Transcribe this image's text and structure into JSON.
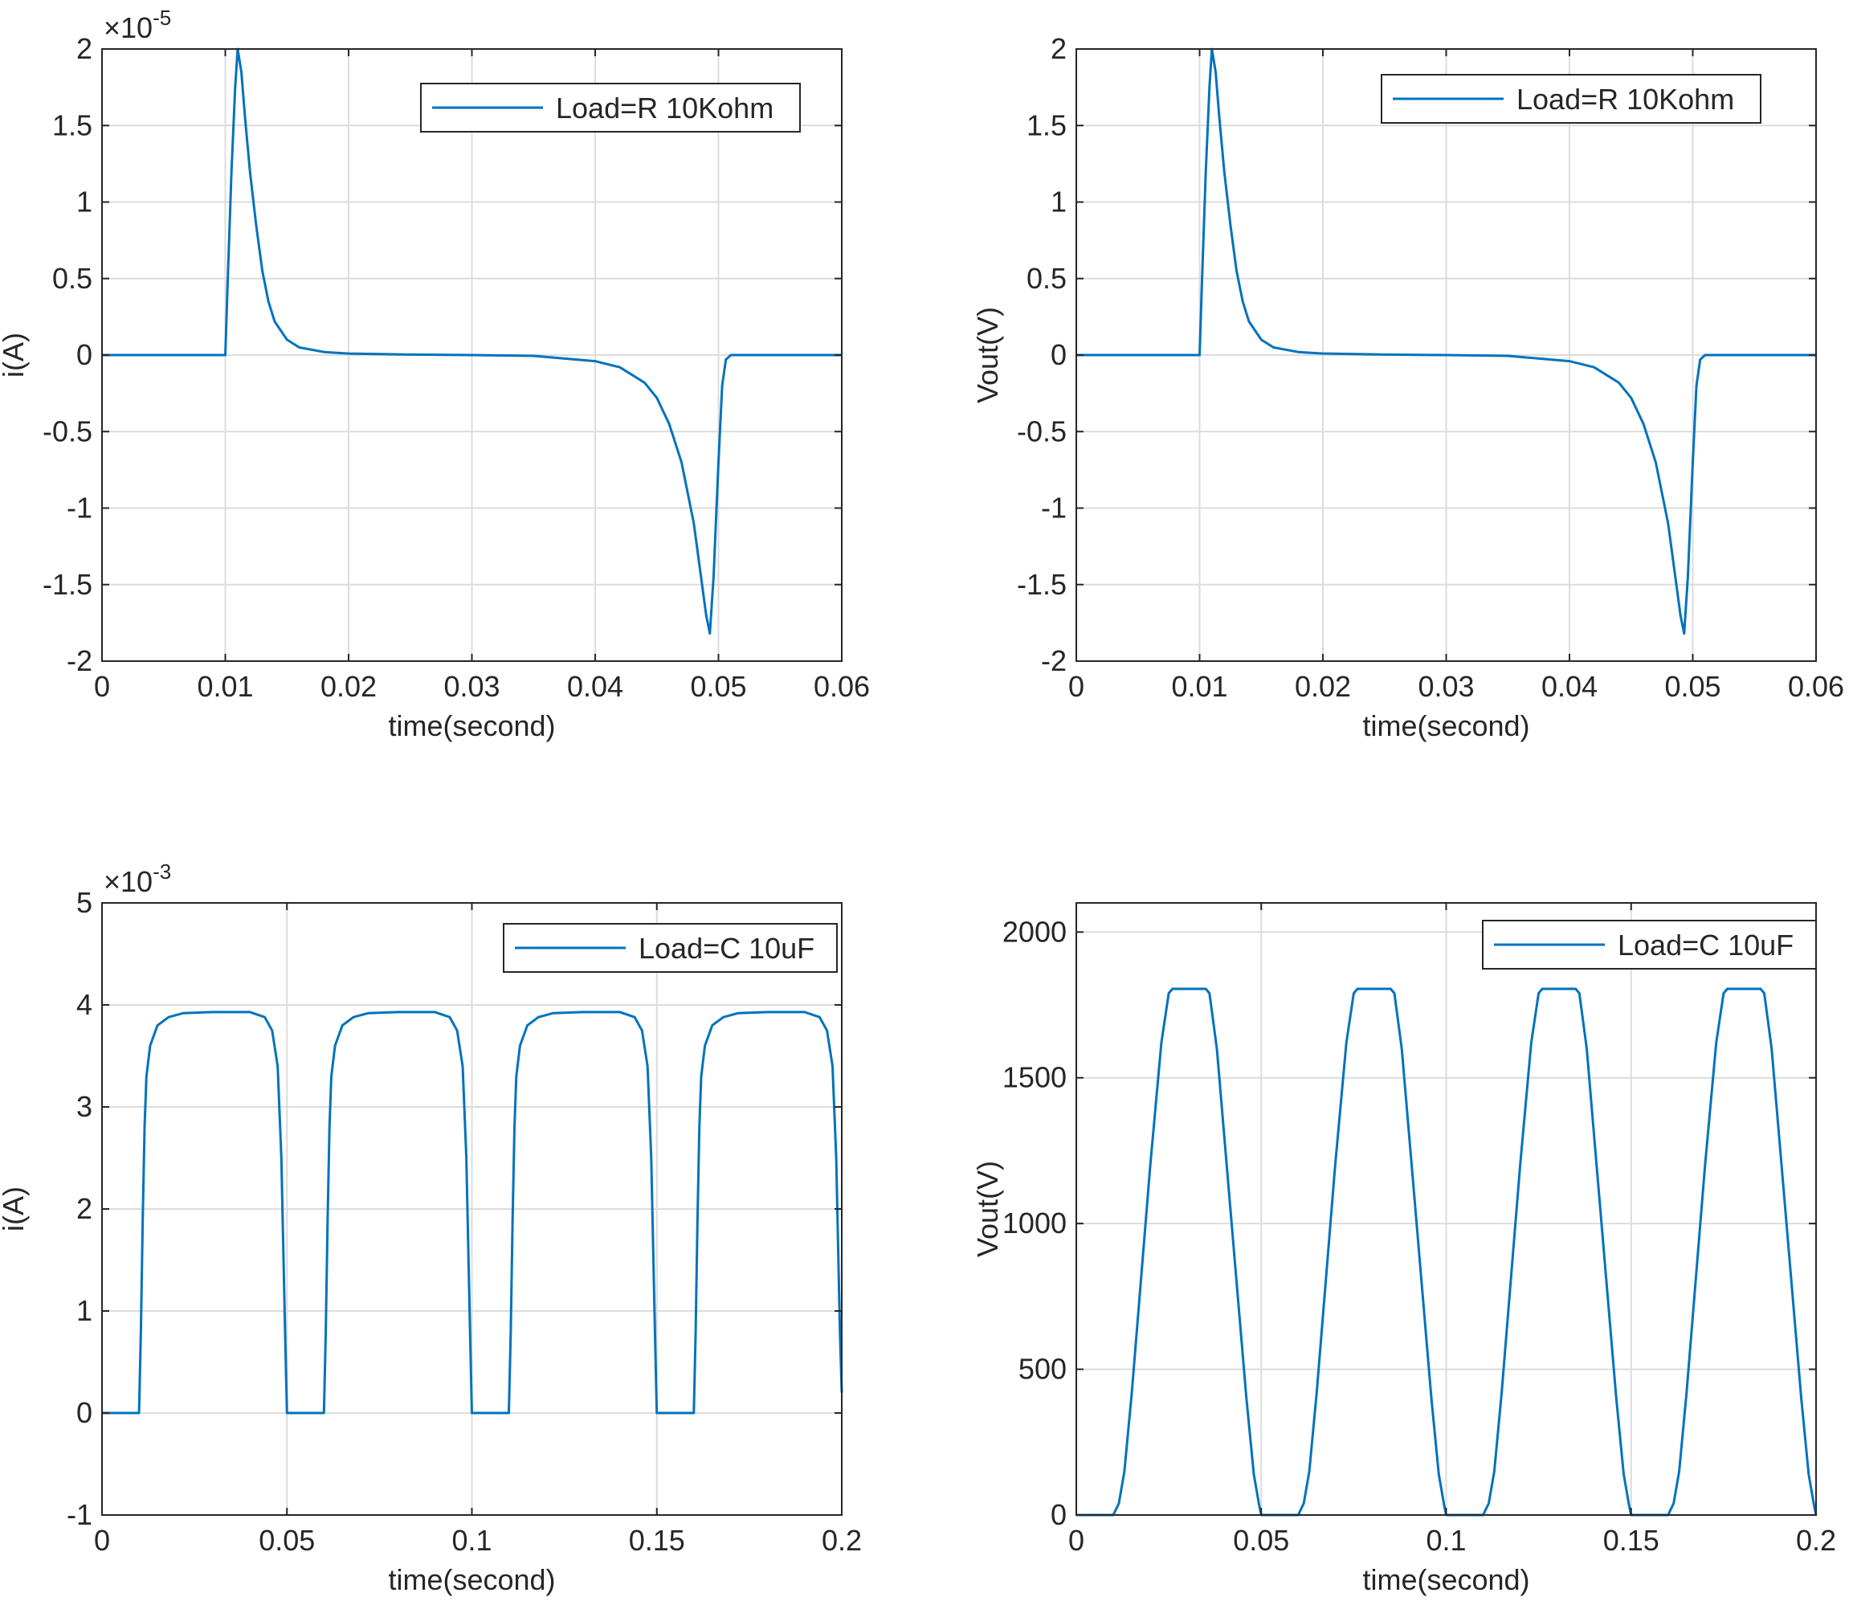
{
  "chart_data": [
    {
      "type": "line",
      "xlabel": "time(second)",
      "ylabel": "i(A)",
      "xlim": [
        0,
        0.06
      ],
      "ylim": [
        -2,
        2
      ],
      "xticks": [
        "0",
        "0.01",
        "0.02",
        "0.03",
        "0.04",
        "0.05",
        "0.06"
      ],
      "yticks": [
        "-2",
        "-1.5",
        "-1",
        "-0.5",
        "0",
        "0.5",
        "1",
        "1.5",
        "2"
      ],
      "y_exponent": "-5",
      "grid": true,
      "legend_position": "top-right",
      "series": [
        {
          "name": "Load=R 10Kohm",
          "color": "#0072BD",
          "x": [
            0,
            0.01,
            0.0102,
            0.0105,
            0.0108,
            0.011,
            0.0113,
            0.0116,
            0.012,
            0.0125,
            0.013,
            0.0135,
            0.014,
            0.015,
            0.016,
            0.018,
            0.02,
            0.025,
            0.03,
            0.035,
            0.04,
            0.042,
            0.044,
            0.045,
            0.046,
            0.047,
            0.048,
            0.0485,
            0.049,
            0.0493,
            0.0496,
            0.05,
            0.0503,
            0.0506,
            0.051,
            0.055,
            0.06
          ],
          "y": [
            0,
            0,
            0.5,
            1.2,
            1.75,
            2.0,
            1.85,
            1.55,
            1.2,
            0.85,
            0.55,
            0.35,
            0.22,
            0.1,
            0.05,
            0.02,
            0.01,
            0.003,
            0,
            -0.005,
            -0.04,
            -0.08,
            -0.18,
            -0.28,
            -0.45,
            -0.7,
            -1.1,
            -1.4,
            -1.7,
            -1.82,
            -1.45,
            -0.7,
            -0.2,
            -0.03,
            0,
            0,
            0
          ]
        }
      ]
    },
    {
      "type": "line",
      "xlabel": "time(second)",
      "ylabel": "Vout(V)",
      "xlim": [
        0,
        0.06
      ],
      "ylim": [
        -2,
        2
      ],
      "xticks": [
        "0",
        "0.01",
        "0.02",
        "0.03",
        "0.04",
        "0.05",
        "0.06"
      ],
      "yticks": [
        "-2",
        "-1.5",
        "-1",
        "-0.5",
        "0",
        "0.5",
        "1",
        "1.5",
        "2"
      ],
      "grid": true,
      "legend_position": "top-right",
      "series": [
        {
          "name": "Load=R 10Kohm",
          "color": "#0072BD",
          "x": [
            0,
            0.01,
            0.0102,
            0.0105,
            0.0108,
            0.011,
            0.0113,
            0.0116,
            0.012,
            0.0125,
            0.013,
            0.0135,
            0.014,
            0.015,
            0.016,
            0.018,
            0.02,
            0.025,
            0.03,
            0.035,
            0.04,
            0.042,
            0.044,
            0.045,
            0.046,
            0.047,
            0.048,
            0.0485,
            0.049,
            0.0493,
            0.0496,
            0.05,
            0.0503,
            0.0506,
            0.051,
            0.055,
            0.06
          ],
          "y": [
            0,
            0,
            0.5,
            1.2,
            1.75,
            2.0,
            1.85,
            1.55,
            1.2,
            0.85,
            0.55,
            0.35,
            0.22,
            0.1,
            0.05,
            0.02,
            0.01,
            0.003,
            0,
            -0.005,
            -0.04,
            -0.08,
            -0.18,
            -0.28,
            -0.45,
            -0.7,
            -1.1,
            -1.4,
            -1.7,
            -1.82,
            -1.45,
            -0.7,
            -0.2,
            -0.03,
            0,
            0,
            0
          ]
        }
      ]
    },
    {
      "type": "line",
      "xlabel": "time(second)",
      "ylabel": "i(A)",
      "xlim": [
        0,
        0.2
      ],
      "ylim": [
        -1,
        5
      ],
      "xticks": [
        "0",
        "0.05",
        "0.1",
        "0.15",
        "0.2"
      ],
      "yticks": [
        "-1",
        "0",
        "1",
        "2",
        "3",
        "4",
        "5"
      ],
      "y_exponent": "-3",
      "grid": true,
      "legend_position": "top-right",
      "series": [
        {
          "name": "Load=C 10uF",
          "color": "#0072BD",
          "x": [
            0,
            0.01,
            0.0105,
            0.011,
            0.0115,
            0.012,
            0.013,
            0.015,
            0.018,
            0.022,
            0.03,
            0.04,
            0.044,
            0.046,
            0.0475,
            0.0485,
            0.0495,
            0.05,
            0.06,
            0.0605,
            0.061,
            0.0615,
            0.062,
            0.063,
            0.065,
            0.068,
            0.072,
            0.08,
            0.09,
            0.094,
            0.096,
            0.0975,
            0.0985,
            0.0995,
            0.1,
            0.11,
            0.1105,
            0.111,
            0.1115,
            0.112,
            0.113,
            0.115,
            0.118,
            0.122,
            0.13,
            0.14,
            0.144,
            0.146,
            0.1475,
            0.1485,
            0.1495,
            0.15,
            0.16,
            0.1605,
            0.161,
            0.1615,
            0.162,
            0.163,
            0.165,
            0.168,
            0.172,
            0.18,
            0.19,
            0.194,
            0.196,
            0.1975,
            0.1985,
            0.1995,
            0.2
          ],
          "y": [
            0,
            0,
            0.8,
            1.9,
            2.8,
            3.3,
            3.6,
            3.8,
            3.88,
            3.92,
            3.93,
            3.93,
            3.88,
            3.75,
            3.4,
            2.5,
            0.8,
            0,
            0,
            0.8,
            1.9,
            2.8,
            3.3,
            3.6,
            3.8,
            3.88,
            3.92,
            3.93,
            3.93,
            3.88,
            3.75,
            3.4,
            2.5,
            0.8,
            0,
            0,
            0.8,
            1.9,
            2.8,
            3.3,
            3.6,
            3.8,
            3.88,
            3.92,
            3.93,
            3.93,
            3.88,
            3.75,
            3.4,
            2.5,
            0.8,
            0,
            0,
            0.8,
            1.9,
            2.8,
            3.3,
            3.6,
            3.8,
            3.88,
            3.92,
            3.93,
            3.93,
            3.88,
            3.75,
            3.4,
            2.5,
            0.8,
            0.2
          ]
        }
      ]
    },
    {
      "type": "line",
      "xlabel": "time(second)",
      "ylabel": "Vout(V)",
      "xlim": [
        0,
        0.2
      ],
      "ylim": [
        0,
        2100
      ],
      "xticks": [
        "0",
        "0.05",
        "0.1",
        "0.15",
        "0.2"
      ],
      "yticks": [
        "0",
        "500",
        "1000",
        "1500",
        "2000"
      ],
      "grid": true,
      "legend_position": "top-right",
      "series": [
        {
          "name": "Load=C 10uF",
          "color": "#0072BD",
          "x": [
            0,
            0.01,
            0.0115,
            0.013,
            0.015,
            0.02,
            0.023,
            0.025,
            0.026,
            0.035,
            0.036,
            0.038,
            0.041,
            0.046,
            0.048,
            0.0495,
            0.05,
            0.06,
            0.0615,
            0.063,
            0.065,
            0.07,
            0.073,
            0.075,
            0.076,
            0.085,
            0.086,
            0.088,
            0.091,
            0.096,
            0.098,
            0.0995,
            0.1,
            0.11,
            0.1115,
            0.113,
            0.115,
            0.12,
            0.123,
            0.125,
            0.126,
            0.135,
            0.136,
            0.138,
            0.141,
            0.146,
            0.148,
            0.1495,
            0.15,
            0.16,
            0.1615,
            0.163,
            0.165,
            0.17,
            0.173,
            0.175,
            0.176,
            0.185,
            0.186,
            0.188,
            0.191,
            0.196,
            0.198,
            0.1995,
            0.2
          ],
          "y": [
            0,
            0,
            40,
            150,
            420,
            1200,
            1620,
            1790,
            1805,
            1805,
            1790,
            1600,
            1150,
            400,
            140,
            30,
            0,
            0,
            40,
            150,
            420,
            1200,
            1620,
            1790,
            1805,
            1805,
            1790,
            1600,
            1150,
            400,
            140,
            30,
            0,
            0,
            40,
            150,
            420,
            1200,
            1620,
            1790,
            1805,
            1805,
            1790,
            1600,
            1150,
            400,
            140,
            30,
            0,
            0,
            40,
            150,
            420,
            1200,
            1620,
            1790,
            1805,
            1805,
            1790,
            1600,
            1150,
            400,
            140,
            30,
            0
          ]
        }
      ]
    }
  ]
}
